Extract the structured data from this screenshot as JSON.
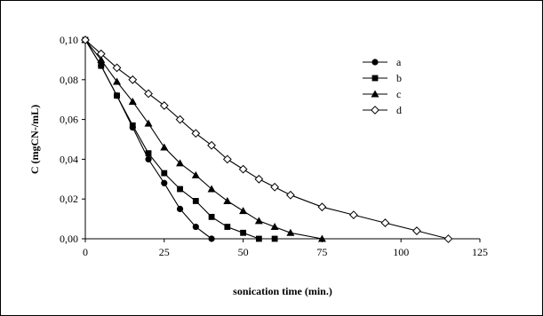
{
  "chart_data": {
    "type": "line",
    "xlabel": "sonication time (min.)",
    "ylabel": "C (mgCN-/mL)",
    "xlim": [
      0,
      125
    ],
    "ylim": [
      0,
      0.1
    ],
    "xticks": [
      0,
      25,
      50,
      75,
      100,
      125
    ],
    "xtick_labels": [
      "0",
      "25",
      "50",
      "75",
      "100",
      "125"
    ],
    "yticks": [
      0,
      0.02,
      0.04,
      0.06,
      0.08,
      0.1
    ],
    "ytick_labels": [
      "0,00",
      "0,02",
      "0,04",
      "0,06",
      "0,08",
      "0,10"
    ],
    "grid": false,
    "legend_position": "right",
    "series": [
      {
        "name": "a",
        "marker": "circle",
        "x": [
          0,
          5,
          10,
          15,
          20,
          25,
          30,
          35,
          40
        ],
        "y": [
          0.1,
          0.087,
          0.072,
          0.056,
          0.04,
          0.028,
          0.015,
          0.006,
          0.0
        ]
      },
      {
        "name": "b",
        "marker": "square",
        "x": [
          0,
          5,
          10,
          15,
          20,
          25,
          30,
          35,
          40,
          45,
          50,
          55,
          60
        ],
        "y": [
          0.1,
          0.087,
          0.072,
          0.057,
          0.043,
          0.033,
          0.025,
          0.019,
          0.011,
          0.006,
          0.003,
          0.0,
          0.0
        ]
      },
      {
        "name": "c",
        "marker": "triangle",
        "x": [
          0,
          5,
          10,
          15,
          20,
          25,
          30,
          35,
          40,
          45,
          50,
          55,
          60,
          65,
          75
        ],
        "y": [
          0.1,
          0.09,
          0.079,
          0.069,
          0.058,
          0.046,
          0.038,
          0.032,
          0.025,
          0.019,
          0.014,
          0.009,
          0.006,
          0.003,
          0.0
        ]
      },
      {
        "name": "d",
        "marker": "diamond",
        "x": [
          0,
          5,
          10,
          15,
          20,
          25,
          30,
          35,
          40,
          45,
          50,
          55,
          60,
          65,
          75,
          85,
          95,
          105,
          115
        ],
        "y": [
          0.1,
          0.093,
          0.086,
          0.08,
          0.073,
          0.067,
          0.06,
          0.053,
          0.047,
          0.04,
          0.035,
          0.03,
          0.026,
          0.022,
          0.016,
          0.012,
          0.008,
          0.004,
          0.0
        ]
      }
    ]
  }
}
